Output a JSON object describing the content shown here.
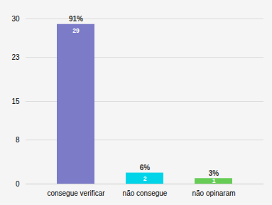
{
  "chart_data": {
    "type": "bar",
    "categories": [
      "consegue verificar",
      "não consegue",
      "não opinaram"
    ],
    "values": [
      29,
      2,
      1
    ],
    "colors": [
      "#7b7bc8",
      "#00d4e8",
      "#66cc55"
    ],
    "annotations": [
      "91%",
      "6%",
      "3%"
    ],
    "data_labels": true,
    "ylim": [
      0,
      30
    ],
    "yticks": [
      0,
      8,
      15,
      23,
      30
    ],
    "grid": true
  }
}
